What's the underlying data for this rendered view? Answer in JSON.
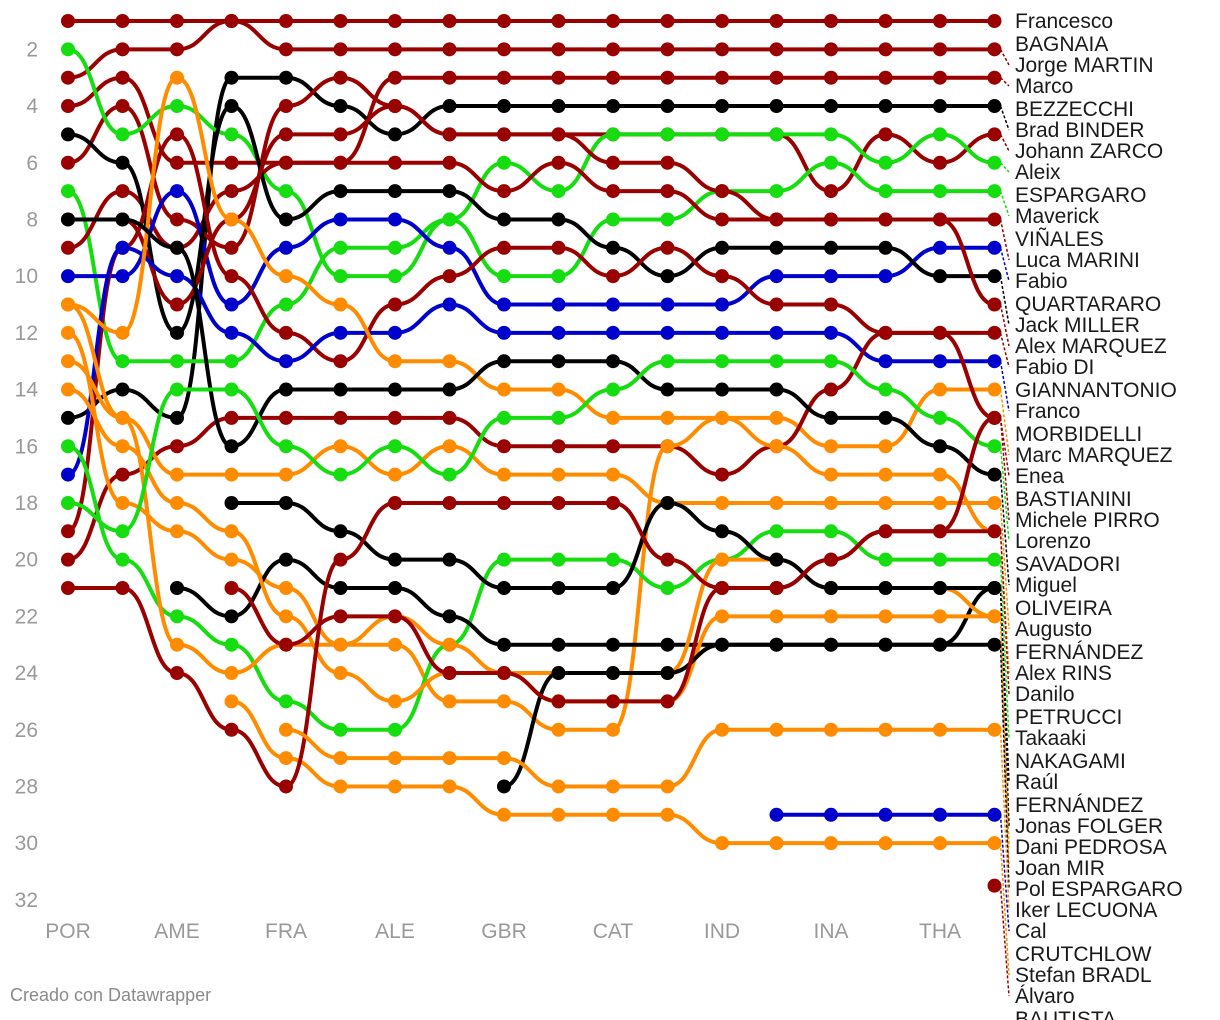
{
  "credit": "Creado con Datawrapper",
  "chart_data": {
    "type": "line",
    "title": "",
    "xlabel": "",
    "ylabel": "",
    "y_axis": "position (reversed)",
    "ylim": [
      32,
      1
    ],
    "yticks": [
      2,
      4,
      6,
      8,
      10,
      12,
      14,
      16,
      18,
      20,
      22,
      24,
      26,
      28,
      30,
      32
    ],
    "x": [
      1,
      2,
      3,
      4,
      5,
      6,
      7,
      8,
      9,
      10,
      11,
      12,
      13,
      14,
      15,
      16,
      17,
      18
    ],
    "xticks": [
      {
        "x": 1,
        "label": "POR"
      },
      {
        "x": 3,
        "label": "AME"
      },
      {
        "x": 5,
        "label": "FRA"
      },
      {
        "x": 7,
        "label": "ALE"
      },
      {
        "x": 9,
        "label": "GBR"
      },
      {
        "x": 11,
        "label": "CAT"
      },
      {
        "x": 13,
        "label": "IND"
      },
      {
        "x": 15,
        "label": "INA"
      },
      {
        "x": 17,
        "label": "THA"
      }
    ],
    "colors": {
      "red": "#990000",
      "green": "#15dd0f",
      "orange": "#ff8c00",
      "black": "#000000",
      "blue": "#0000cc"
    },
    "grid": false,
    "legend": "labels at line ends",
    "series": [
      {
        "name": "Francesco BAGNAIA",
        "color": "red",
        "values": [
          1,
          1,
          1,
          1,
          1,
          1,
          1,
          1,
          1,
          1,
          1,
          1,
          1,
          1,
          1,
          1,
          1,
          1
        ]
      },
      {
        "name": "Jorge MARTIN",
        "color": "red",
        "values": [
          3,
          2,
          2,
          1,
          2,
          2,
          2,
          2,
          2,
          2,
          2,
          2,
          2,
          2,
          2,
          2,
          2,
          2
        ]
      },
      {
        "name": "Marco BEZZECCHI",
        "color": "red",
        "values": [
          4,
          3,
          6,
          6,
          6,
          6,
          3,
          3,
          3,
          3,
          3,
          3,
          3,
          3,
          3,
          3,
          3,
          3
        ]
      },
      {
        "name": "Brad BINDER",
        "color": "black",
        "values": [
          15,
          14,
          15,
          3,
          3,
          4,
          5,
          4,
          4,
          4,
          4,
          4,
          4,
          4,
          4,
          4,
          4,
          4
        ]
      },
      {
        "name": "Johann ZARCO",
        "color": "red",
        "values": [
          6,
          4,
          8,
          9,
          4,
          3,
          4,
          5,
          5,
          5,
          5,
          5,
          5,
          5,
          7,
          5,
          6,
          5
        ]
      },
      {
        "name": "Aleix ESPARGARO",
        "color": "green",
        "values": [
          2,
          5,
          4,
          5,
          7,
          10,
          10,
          8,
          6,
          7,
          5,
          5,
          5,
          5,
          5,
          6,
          5,
          6
        ]
      },
      {
        "name": "Maverick VIÑALES",
        "color": "green",
        "values": [
          7,
          13,
          13,
          13,
          11,
          9,
          9,
          8,
          10,
          10,
          8,
          8,
          7,
          7,
          6,
          7,
          7,
          7
        ]
      },
      {
        "name": "Luca MARINI",
        "color": "red",
        "values": [
          9,
          7,
          9,
          7,
          6,
          6,
          6,
          6,
          7,
          6,
          7,
          7,
          8,
          8,
          8,
          8,
          8,
          8
        ]
      },
      {
        "name": "Fabio QUARTARARO",
        "color": "blue",
        "values": [
          10,
          10,
          7,
          11,
          9,
          8,
          8,
          9,
          11,
          11,
          11,
          11,
          11,
          10,
          10,
          10,
          9,
          9
        ]
      },
      {
        "name": "Jack MILLER",
        "color": "black",
        "values": [
          5,
          6,
          12,
          4,
          8,
          7,
          7,
          7,
          8,
          8,
          9,
          10,
          9,
          9,
          9,
          9,
          10,
          10
        ]
      },
      {
        "name": "Alex MARQUEZ",
        "color": "red",
        "values": [
          8,
          8,
          11,
          8,
          5,
          5,
          4,
          5,
          5,
          5,
          6,
          6,
          7,
          8,
          8,
          8,
          8,
          11
        ]
      },
      {
        "name": "Fabio DI GIANNANTONIO",
        "color": "red",
        "values": [
          19,
          9,
          5,
          10,
          12,
          13,
          11,
          10,
          9,
          9,
          10,
          9,
          10,
          11,
          11,
          12,
          12,
          12
        ]
      },
      {
        "name": "Franco MORBIDELLI",
        "color": "blue",
        "values": [
          17,
          9,
          10,
          12,
          13,
          12,
          12,
          11,
          12,
          12,
          12,
          12,
          12,
          12,
          12,
          13,
          13,
          13
        ]
      },
      {
        "name": "Marc MARQUEZ",
        "color": "orange",
        "values": [
          11,
          12,
          3,
          8,
          10,
          11,
          13,
          13,
          14,
          14,
          15,
          15,
          15,
          15,
          16,
          16,
          14,
          14
        ]
      },
      {
        "name": "Enea BASTIANINI",
        "color": "red",
        "values": [
          20,
          17,
          16,
          15,
          15,
          15,
          15,
          15,
          16,
          16,
          16,
          16,
          17,
          16,
          14,
          12,
          12,
          15
        ]
      },
      {
        "name": "Miguel OLIVEIRA",
        "color": "black",
        "values": [
          8,
          8,
          9,
          16,
          14,
          14,
          14,
          14,
          13,
          13,
          13,
          14,
          14,
          14,
          15,
          15,
          16,
          17
        ]
      },
      {
        "name": "Augusto FERNÁNDEZ",
        "color": "orange",
        "values": [
          13,
          15,
          17,
          17,
          17,
          16,
          17,
          16,
          17,
          17,
          17,
          18,
          18,
          18,
          18,
          18,
          18,
          18
        ]
      },
      {
        "name": "Alex RINS",
        "color": "orange",
        "values": [
          12,
          18,
          19,
          20,
          21,
          23,
          23,
          25,
          25,
          26,
          26,
          16,
          15,
          16,
          17,
          17,
          17,
          19
        ]
      },
      {
        "name": "Takaaki NAKAGAMI",
        "color": "green",
        "values": [
          16,
          20,
          22,
          23,
          25,
          26,
          26,
          23,
          20,
          20,
          20,
          21,
          20,
          19,
          19,
          20,
          20,
          20
        ]
      },
      {
        "name": "Raúl FERNÁNDEZ",
        "color": "black",
        "values": [
          null,
          null,
          21,
          22,
          20,
          21,
          21,
          22,
          23,
          23,
          23,
          23,
          23,
          23,
          23,
          23,
          23,
          21
        ]
      },
      {
        "name": "Dani PEDROSA",
        "color": "orange",
        "values": [
          14,
          16,
          18,
          19,
          22,
          24,
          25,
          24,
          24,
          25,
          25,
          25,
          22,
          22,
          22,
          22,
          22,
          22
        ]
      },
      {
        "name": "Joan MIR",
        "color": "orange",
        "values": [
          11,
          15,
          23,
          24,
          23,
          23,
          22,
          23,
          24,
          24,
          24,
          24,
          20,
          20,
          21,
          21,
          21,
          22
        ]
      },
      {
        "name": "Pol ESPARGARO",
        "color": "black",
        "values": [
          null,
          null,
          null,
          null,
          null,
          null,
          null,
          null,
          28,
          24,
          24,
          24,
          23,
          23,
          23,
          23,
          23,
          23
        ]
      },
      {
        "name": "Lorenzo SAVADORI",
        "color": "green",
        "values": [
          18,
          19,
          14,
          14,
          16,
          17,
          16,
          17,
          15,
          15,
          14,
          13,
          13,
          13,
          13,
          14,
          15,
          16
        ]
      },
      {
        "name": "Jonas FOLGER",
        "color": "black",
        "values": [
          null,
          null,
          null,
          18,
          18,
          19,
          20,
          20,
          21,
          21,
          21,
          18,
          19,
          20,
          21,
          21,
          21,
          21
        ]
      },
      {
        "name": "Stefan BRADL",
        "color": "orange",
        "values": [
          null,
          null,
          null,
          25,
          27,
          28,
          28,
          28,
          29,
          29,
          29,
          29,
          30,
          30,
          30,
          30,
          30,
          30
        ]
      },
      {
        "name": "Michele PIRRO",
        "color": "red",
        "values": [
          null,
          null,
          null,
          21,
          23,
          22,
          22,
          24,
          24,
          25,
          25,
          25,
          21,
          21,
          20,
          19,
          19,
          15
        ]
      },
      {
        "name": "Danilo PETRUCCI",
        "color": "red",
        "values": [
          21,
          21,
          24,
          26,
          28,
          20,
          18,
          18,
          18,
          18,
          18,
          20,
          21,
          21,
          20,
          19,
          19,
          19
        ]
      },
      {
        "name": "Cal CRUTCHLOW",
        "color": "blue",
        "values": [
          null,
          null,
          null,
          null,
          null,
          null,
          null,
          null,
          null,
          null,
          null,
          null,
          null,
          29,
          29,
          29,
          29,
          29
        ]
      },
      {
        "name": "Iker LECUONA",
        "color": "orange",
        "values": [
          null,
          null,
          null,
          null,
          26,
          27,
          27,
          27,
          27,
          28,
          28,
          28,
          26,
          26,
          26,
          26,
          26,
          26
        ]
      },
      {
        "name": "Álvaro BAUTISTA",
        "color": "red",
        "values": [
          null,
          null,
          null,
          null,
          null,
          null,
          null,
          null,
          null,
          null,
          null,
          null,
          null,
          null,
          null,
          null,
          null,
          31.5
        ]
      }
    ],
    "labels": [
      {
        "series": "Francesco BAGNAIA",
        "lines": [
          "Francesco",
          "BAGNAIA"
        ]
      },
      {
        "series": "Jorge MARTIN",
        "lines": [
          "Jorge MARTIN"
        ]
      },
      {
        "series": "Marco BEZZECCHI",
        "lines": [
          "Marco",
          "BEZZECCHI"
        ]
      },
      {
        "series": "Brad BINDER",
        "lines": [
          "Brad BINDER"
        ]
      },
      {
        "series": "Johann ZARCO",
        "lines": [
          "Johann ZARCO"
        ]
      },
      {
        "series": "Aleix ESPARGARO",
        "lines": [
          "Aleix",
          "ESPARGARO"
        ]
      },
      {
        "series": "Maverick VIÑALES",
        "lines": [
          "Maverick",
          "VIÑALES"
        ]
      },
      {
        "series": "Luca MARINI",
        "lines": [
          "Luca MARINI"
        ]
      },
      {
        "series": "Fabio QUARTARARO",
        "lines": [
          "Fabio",
          "QUARTARARO"
        ]
      },
      {
        "series": "Jack MILLER",
        "lines": [
          "Jack MILLER"
        ]
      },
      {
        "series": "Alex MARQUEZ",
        "lines": [
          "Alex MARQUEZ"
        ]
      },
      {
        "series": "Fabio DI GIANNANTONIO",
        "lines": [
          "Fabio DI",
          "GIANNANTONIO"
        ]
      },
      {
        "series": "Franco MORBIDELLI",
        "lines": [
          "Franco",
          "MORBIDELLI"
        ]
      },
      {
        "series": "Marc MARQUEZ",
        "lines": [
          "Marc MARQUEZ"
        ]
      },
      {
        "series": "Enea BASTIANINI",
        "lines": [
          "Enea",
          "BASTIANINI"
        ]
      },
      {
        "series": "Miguel OLIVEIRA",
        "lines": [
          "Miguel",
          "OLIVEIRA"
        ]
      },
      {
        "series": "Augusto FERNÁNDEZ",
        "lines": [
          "Augusto",
          "FERNÁNDEZ"
        ]
      },
      {
        "series": "Alex RINS",
        "lines": [
          "Alex RINS"
        ]
      },
      {
        "series": "Takaaki NAKAGAMI",
        "lines": [
          "Takaaki",
          "NAKAGAMI"
        ]
      },
      {
        "series": "Raúl FERNÁNDEZ",
        "lines": [
          "Raúl",
          "FERNÁNDEZ"
        ]
      },
      {
        "series": "Dani PEDROSA",
        "lines": [
          "Dani PEDROSA"
        ]
      },
      {
        "series": "Joan MIR",
        "lines": [
          "Joan MIR"
        ]
      },
      {
        "series": "Pol ESPARGARO",
        "lines": [
          "Pol ESPARGARO"
        ]
      },
      {
        "series": "Lorenzo SAVADORI",
        "lines": [
          "Lorenzo",
          "SAVADORI"
        ]
      },
      {
        "series": "Jonas FOLGER",
        "lines": [
          "Jonas FOLGER"
        ]
      },
      {
        "series": "Stefan BRADL",
        "lines": [
          "Stefan BRADL"
        ]
      },
      {
        "series": "Michele PIRRO",
        "lines": [
          "Michele PIRRO"
        ]
      },
      {
        "series": "Danilo PETRUCCI",
        "lines": [
          "Danilo",
          "PETRUCCI"
        ]
      },
      {
        "series": "Cal CRUTCHLOW",
        "lines": [
          "Cal",
          "CRUTCHLOW"
        ]
      },
      {
        "series": "Iker LECUONA",
        "lines": [
          "Iker LECUONA"
        ]
      },
      {
        "series": "Álvaro BAUTISTA",
        "lines": [
          "Álvaro",
          "BAUTISTA"
        ]
      }
    ]
  }
}
